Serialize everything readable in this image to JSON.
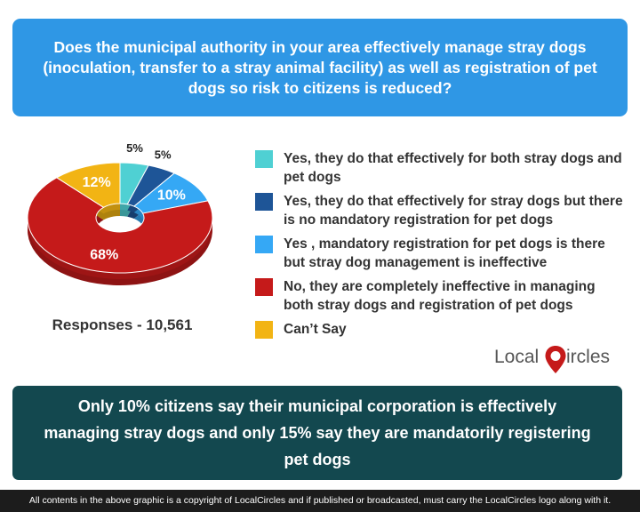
{
  "question": "Does the municipal authority in your area effectively manage stray dogs (inoculation, transfer to a stray animal facility) as well as registration of pet dogs so risk to citizens is reduced?",
  "chart_data": {
    "type": "pie",
    "categories": [
      "Yes, they do that effectively for both stray dogs and pet dogs",
      "Yes, they do that effectively for stray dogs but there is no mandatory registration for pet dogs",
      "Yes , mandatory registration for pet dogs is there but stray dog management is ineffective",
      "No, they are completely ineffective in managing both stray dogs and registration of pet dogs",
      "Can’t Say"
    ],
    "values": [
      5,
      5,
      10,
      68,
      12
    ],
    "value_labels": [
      "5%",
      "5%",
      "10%",
      "68%",
      "12%"
    ],
    "colors": [
      "#4fd0d3",
      "#1e5597",
      "#35a8f5",
      "#c51a1a",
      "#f2b414"
    ],
    "label_colors": [
      "#222222",
      "#222222",
      "#ffffff",
      "#ffffff",
      "#ffffff"
    ],
    "label_outside": [
      true,
      true,
      false,
      false,
      false
    ],
    "style": "donut"
  },
  "responses": "Responses - 10,561",
  "logo": {
    "local": "Local",
    "c": "C",
    "rest": "ircles"
  },
  "summary": "Only 10% citizens say their municipal corporation is effectively managing stray dogs and only 15% say they are mandatorily registering pet dogs",
  "footer": "All contents in the above graphic is a copyright of LocalCircles and if published or broadcasted, must carry the LocalCircles logo along with it."
}
